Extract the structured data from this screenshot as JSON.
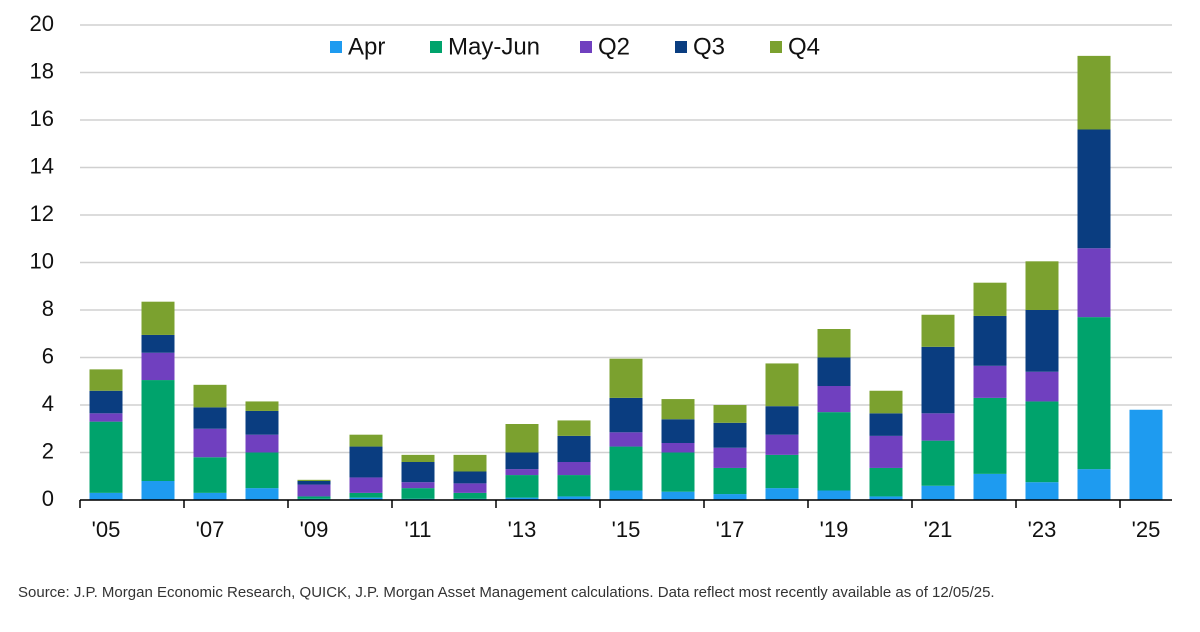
{
  "chart_data": {
    "type": "stacked-bar",
    "categories": [
      "'05",
      null,
      "'07",
      null,
      "'09",
      null,
      "'11",
      null,
      "'13",
      null,
      "'15",
      null,
      "'17",
      null,
      "'19",
      null,
      "'21",
      null,
      "'23",
      null,
      "'25"
    ],
    "series": [
      {
        "name": "Apr",
        "color": "#1e9bf0",
        "values": [
          0.3,
          0.8,
          0.3,
          0.5,
          0.05,
          0.1,
          0.05,
          0.05,
          0.1,
          0.15,
          0.4,
          0.35,
          0.25,
          0.5,
          0.4,
          0.15,
          0.6,
          1.1,
          0.75,
          1.3,
          3.8
        ]
      },
      {
        "name": "May-Jun",
        "color": "#00a36c",
        "values": [
          3.0,
          4.25,
          1.5,
          1.5,
          0.1,
          0.2,
          0.45,
          0.25,
          0.95,
          0.9,
          1.85,
          1.65,
          1.1,
          1.4,
          3.3,
          1.2,
          1.9,
          3.2,
          3.4,
          6.4,
          null
        ]
      },
      {
        "name": "Q2",
        "color": "#7040bf",
        "values": [
          0.35,
          1.15,
          1.2,
          0.75,
          0.5,
          0.65,
          0.25,
          0.4,
          0.25,
          0.55,
          0.6,
          0.4,
          0.85,
          0.85,
          1.1,
          1.35,
          1.15,
          1.35,
          1.25,
          2.9,
          null
        ]
      },
      {
        "name": "Q3",
        "color": "#0a3d80",
        "values": [
          0.95,
          0.75,
          0.9,
          1.0,
          0.15,
          1.3,
          0.85,
          0.5,
          0.7,
          1.1,
          1.45,
          1.0,
          1.05,
          1.2,
          1.2,
          0.95,
          2.8,
          2.1,
          2.6,
          5.0,
          null
        ]
      },
      {
        "name": "Q4",
        "color": "#7ba12f",
        "values": [
          0.9,
          1.4,
          0.95,
          0.4,
          0.05,
          0.5,
          0.3,
          0.7,
          1.2,
          0.65,
          1.65,
          0.85,
          0.75,
          1.8,
          1.2,
          0.95,
          1.35,
          1.4,
          2.05,
          3.1,
          null
        ]
      }
    ],
    "ylim": [
      0,
      20
    ],
    "yticks": [
      0,
      2,
      4,
      6,
      8,
      10,
      12,
      14,
      16,
      18,
      20
    ],
    "grid": true,
    "legend": "top",
    "source": "Source: J.P. Morgan Economic Research, QUICK, J.P. Morgan Asset Management calculations. Data reflect most recently available as of 12/05/25."
  }
}
